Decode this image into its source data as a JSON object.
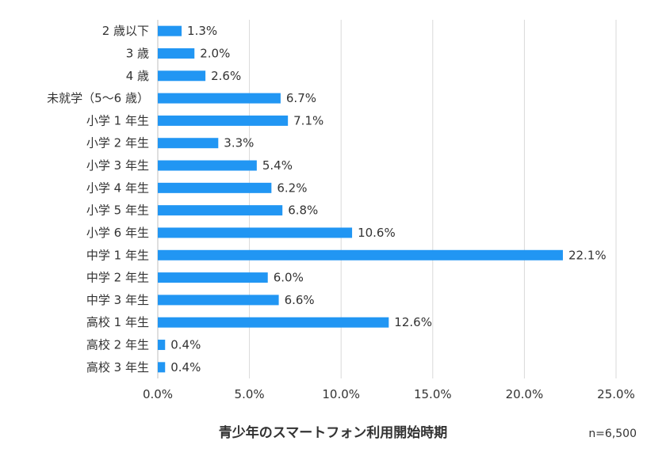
{
  "chart_data": {
    "type": "bar",
    "orientation": "horizontal",
    "title": "青少年のスマートフォン利用開始時期",
    "note": "n=6,500",
    "categories": [
      "2 歳以下",
      "3 歳",
      "4 歳",
      "未就学（5〜6 歳）",
      "小学 1 年生",
      "小学 2 年生",
      "小学 3 年生",
      "小学 4 年生",
      "小学 5 年生",
      "小学 6 年生",
      "中学 1 年生",
      "中学 2 年生",
      "中学 3 年生",
      "高校 1 年生",
      "高校 2 年生",
      "高校 3 年生"
    ],
    "values": [
      1.3,
      2.0,
      2.6,
      6.7,
      7.1,
      3.3,
      5.4,
      6.2,
      6.8,
      10.6,
      22.1,
      6.0,
      6.6,
      12.6,
      0.4,
      0.4
    ],
    "value_labels": [
      "1.3%",
      "2.0%",
      "2.6%",
      "6.7%",
      "7.1%",
      "3.3%",
      "5.4%",
      "6.2%",
      "6.8%",
      "10.6%",
      "22.1%",
      "6.0%",
      "6.6%",
      "12.6%",
      "0.4%",
      "0.4%"
    ],
    "xlim": [
      0,
      25
    ],
    "xticks": [
      0,
      5,
      10,
      15,
      20,
      25
    ],
    "xtick_labels": [
      "0.0%",
      "5.0%",
      "10.0%",
      "15.0%",
      "20.0%",
      "25.0%"
    ],
    "grid": true,
    "legend": "none",
    "bar_color": "#2196F3"
  }
}
